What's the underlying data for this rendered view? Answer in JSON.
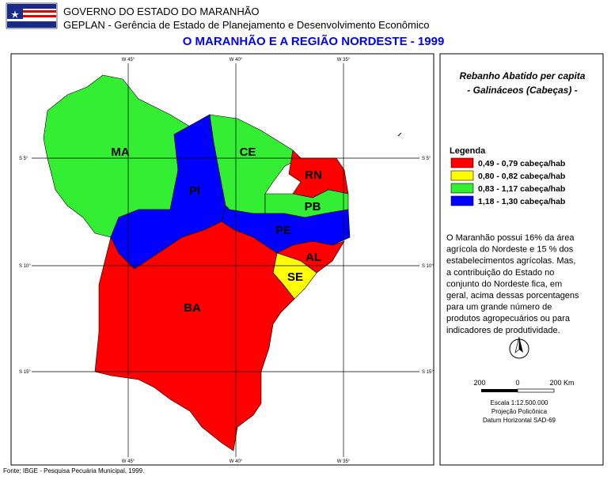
{
  "header": {
    "org": "GOVERNO DO ESTADO DO MARANHÃO",
    "dept": "GEPLAN - Gerência de Estado de Planejamento e Desenvolvimento Econômico",
    "title": "O MARANHÃO E A REGIÃO NORDESTE - 1999"
  },
  "map": {
    "meridians": [
      "W 45°",
      "W 40°",
      "W 35°"
    ],
    "parallels": [
      "S 5°",
      "S 10°",
      "S 15°"
    ],
    "states": [
      {
        "label": "MA",
        "class": 2
      },
      {
        "label": "PI",
        "class": 3
      },
      {
        "label": "CE",
        "class": 2
      },
      {
        "label": "RN",
        "class": 0
      },
      {
        "label": "PB",
        "class": 2
      },
      {
        "label": "PE",
        "class": 3
      },
      {
        "label": "AL",
        "class": 0
      },
      {
        "label": "SE",
        "class": 1
      },
      {
        "label": "BA",
        "class": 0
      }
    ]
  },
  "panel": {
    "title": [
      "Rebanho Abatido per capita",
      "- Galináceos (Cabeças) -"
    ],
    "legend": {
      "heading": "Legenda",
      "items": [
        {
          "label": "0,49 - 0,79 cabeça/hab",
          "color": "#ff0000"
        },
        {
          "label": "0,80 - 0,82 cabeça/hab",
          "color": "#ffff00"
        },
        {
          "label": "0,83 - 1,17 cabeça/hab",
          "color": "#33ee33"
        },
        {
          "label": "1,18 - 1,30 cabeça/hab",
          "color": "#0000ff"
        }
      ]
    },
    "text": [
      "O Maranhão possui 16% da área",
      "agrícola do Nordeste e 15 % dos",
      "estabelecimentos agrícolas. Mas,",
      "a contribuição do Estado no",
      "conjunto do Nordeste fica, em",
      "geral, acima dessas porcentagens",
      "para um grande número de",
      "produtos agropecuários ou para",
      "indicadores de produtividade."
    ],
    "scale_labels": [
      "200",
      "0",
      "200 Km"
    ],
    "notes": [
      "Escala 1:12.500.000",
      "Projeção Policônica",
      "Datum Horizontal SAD-69"
    ]
  },
  "footer": "Fonte: IBGE - Pesquisa Pecuária Municipal, 1999."
}
